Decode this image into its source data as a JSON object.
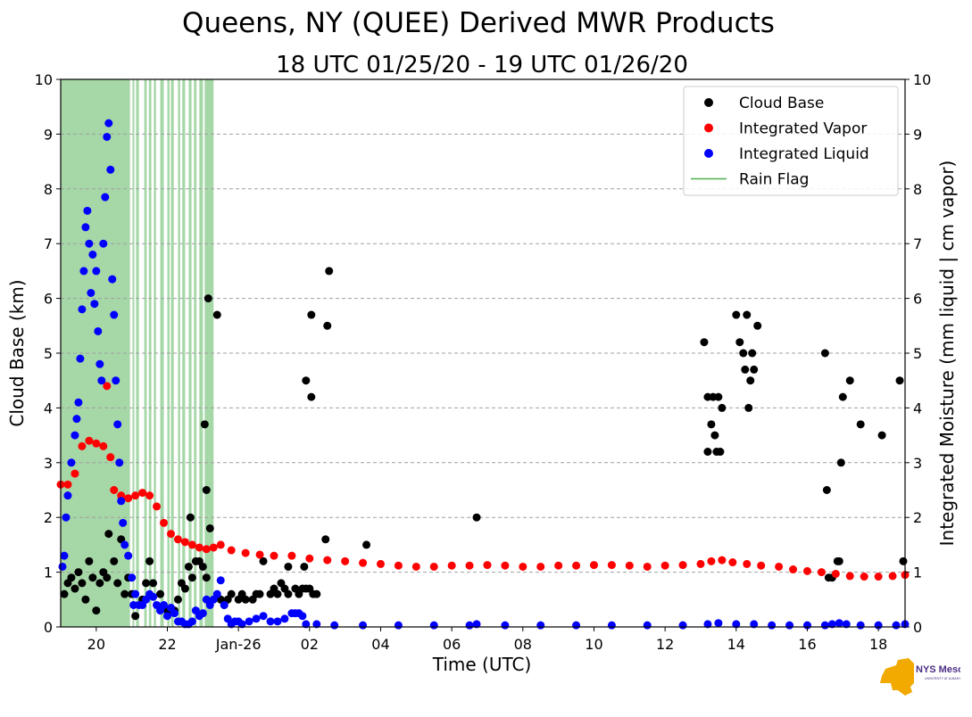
{
  "chart_data": {
    "type": "scatter",
    "title": "Queens, NY (QUEE) Derived MWR Products",
    "subtitle": "18 UTC 01/25/20 - 19 UTC 01/26/20",
    "xlabel": "Time (UTC)",
    "ylabel_left": "Cloud Base (km)",
    "ylabel_right": "Integrated Moisture (mm liquid | cm vapor)",
    "x_unit": "hours since 2020-01-25 00:00 UTC",
    "xlim": [
      19.0,
      42.75
    ],
    "ylim": [
      0,
      10
    ],
    "x_ticks": [
      {
        "x": 20,
        "label": "20"
      },
      {
        "x": 22,
        "label": "22"
      },
      {
        "x": 24,
        "label": "Jan-26"
      },
      {
        "x": 26,
        "label": "02"
      },
      {
        "x": 28,
        "label": "04"
      },
      {
        "x": 30,
        "label": "06"
      },
      {
        "x": 32,
        "label": "08"
      },
      {
        "x": 34,
        "label": "10"
      },
      {
        "x": 36,
        "label": "12"
      },
      {
        "x": 38,
        "label": "14"
      },
      {
        "x": 40,
        "label": "16"
      },
      {
        "x": 42,
        "label": "18"
      }
    ],
    "y_ticks": [
      0,
      1,
      2,
      3,
      4,
      5,
      6,
      7,
      8,
      9,
      10
    ],
    "grid": "horizontal dashed",
    "legend_position": "top-right",
    "legend": [
      {
        "label": "Cloud Base",
        "color": "#000000",
        "kind": "dot"
      },
      {
        "label": "Integrated Vapor",
        "color": "#ff0000",
        "kind": "dot"
      },
      {
        "label": "Integrated Liquid",
        "color": "#0000ff",
        "kind": "dot"
      },
      {
        "label": "Rain Flag",
        "color": "#4caf50",
        "kind": "line"
      }
    ],
    "rain_flag_intervals": [
      [
        19.0,
        20.95
      ],
      [
        21.02,
        21.07
      ],
      [
        21.12,
        21.2
      ],
      [
        21.35,
        21.42
      ],
      [
        21.48,
        21.55
      ],
      [
        21.62,
        21.68
      ],
      [
        21.8,
        21.9
      ],
      [
        22.0,
        22.06
      ],
      [
        22.1,
        22.18
      ],
      [
        22.3,
        22.36
      ],
      [
        22.42,
        22.5
      ],
      [
        22.6,
        22.68
      ],
      [
        22.75,
        22.82
      ],
      [
        22.9,
        23.0
      ],
      [
        23.05,
        23.3
      ]
    ],
    "series": [
      {
        "name": "Cloud Base",
        "color": "#000000",
        "points": [
          [
            19.1,
            0.6
          ],
          [
            19.2,
            0.8
          ],
          [
            19.3,
            0.9
          ],
          [
            19.4,
            0.7
          ],
          [
            19.5,
            1.0
          ],
          [
            19.6,
            0.8
          ],
          [
            19.7,
            0.5
          ],
          [
            19.8,
            1.2
          ],
          [
            19.9,
            0.9
          ],
          [
            20.0,
            0.3
          ],
          [
            20.1,
            0.8
          ],
          [
            20.2,
            1.0
          ],
          [
            20.3,
            0.9
          ],
          [
            20.35,
            1.7
          ],
          [
            20.5,
            1.2
          ],
          [
            20.6,
            0.8
          ],
          [
            20.7,
            1.6
          ],
          [
            20.8,
            0.6
          ],
          [
            20.9,
            0.9
          ],
          [
            21.0,
            0.6
          ],
          [
            21.1,
            0.2
          ],
          [
            21.3,
            0.5
          ],
          [
            21.4,
            0.8
          ],
          [
            21.5,
            1.2
          ],
          [
            21.6,
            0.8
          ],
          [
            21.8,
            0.6
          ],
          [
            22.0,
            0.3
          ],
          [
            22.2,
            0.3
          ],
          [
            22.3,
            0.5
          ],
          [
            22.4,
            0.8
          ],
          [
            22.5,
            0.7
          ],
          [
            22.6,
            1.1
          ],
          [
            22.7,
            0.9
          ],
          [
            22.8,
            1.2
          ],
          [
            22.9,
            1.2
          ],
          [
            23.0,
            1.1
          ],
          [
            23.1,
            0.9
          ],
          [
            22.65,
            2.0
          ],
          [
            23.05,
            3.7
          ],
          [
            23.1,
            2.5
          ],
          [
            23.15,
            6.0
          ],
          [
            23.2,
            1.8
          ],
          [
            23.4,
            5.7
          ],
          [
            23.5,
            0.5
          ],
          [
            23.6,
            0.4
          ],
          [
            23.7,
            0.5
          ],
          [
            23.8,
            0.6
          ],
          [
            24.0,
            0.5
          ],
          [
            24.1,
            0.6
          ],
          [
            24.2,
            0.5
          ],
          [
            24.4,
            0.5
          ],
          [
            24.5,
            0.6
          ],
          [
            24.6,
            0.6
          ],
          [
            24.7,
            1.2
          ],
          [
            24.9,
            0.6
          ],
          [
            25.0,
            0.7
          ],
          [
            25.1,
            0.6
          ],
          [
            25.2,
            0.8
          ],
          [
            25.3,
            0.7
          ],
          [
            25.4,
            0.6
          ],
          [
            25.6,
            0.7
          ],
          [
            25.7,
            0.6
          ],
          [
            25.8,
            0.7
          ],
          [
            25.9,
            0.7
          ],
          [
            26.0,
            0.7
          ],
          [
            26.1,
            0.6
          ],
          [
            26.2,
            0.6
          ],
          [
            25.4,
            1.1
          ],
          [
            25.85,
            1.1
          ],
          [
            25.9,
            4.5
          ],
          [
            26.05,
            4.2
          ],
          [
            26.05,
            5.7
          ],
          [
            26.45,
            1.6
          ],
          [
            26.5,
            5.5
          ],
          [
            26.55,
            6.5
          ],
          [
            27.6,
            1.5
          ],
          [
            30.7,
            2.0
          ],
          [
            37.1,
            5.2
          ],
          [
            37.2,
            4.2
          ],
          [
            37.2,
            3.2
          ],
          [
            37.3,
            3.7
          ],
          [
            37.35,
            4.2
          ],
          [
            37.4,
            3.5
          ],
          [
            37.45,
            3.2
          ],
          [
            37.5,
            4.2
          ],
          [
            37.55,
            3.2
          ],
          [
            37.6,
            4.0
          ],
          [
            38.0,
            5.7
          ],
          [
            38.1,
            5.2
          ],
          [
            38.2,
            5.0
          ],
          [
            38.25,
            4.7
          ],
          [
            38.3,
            5.7
          ],
          [
            38.35,
            4.0
          ],
          [
            38.4,
            4.5
          ],
          [
            38.45,
            5.0
          ],
          [
            38.5,
            4.7
          ],
          [
            38.6,
            5.5
          ],
          [
            40.5,
            5.0
          ],
          [
            40.55,
            2.5
          ],
          [
            40.6,
            0.9
          ],
          [
            40.7,
            0.9
          ],
          [
            40.85,
            1.2
          ],
          [
            40.9,
            1.2
          ],
          [
            40.95,
            3.0
          ],
          [
            41.0,
            4.2
          ],
          [
            41.2,
            4.5
          ],
          [
            41.5,
            3.7
          ],
          [
            42.1,
            3.5
          ],
          [
            42.6,
            4.5
          ],
          [
            42.7,
            1.2
          ]
        ]
      },
      {
        "name": "Integrated Vapor",
        "color": "#ff0000",
        "points": [
          [
            19.0,
            2.6
          ],
          [
            19.2,
            2.6
          ],
          [
            19.4,
            2.8
          ],
          [
            19.6,
            3.3
          ],
          [
            19.8,
            3.4
          ],
          [
            20.0,
            3.35
          ],
          [
            20.2,
            3.3
          ],
          [
            20.3,
            4.4
          ],
          [
            20.4,
            3.1
          ],
          [
            20.5,
            2.5
          ],
          [
            20.7,
            2.4
          ],
          [
            20.9,
            2.35
          ],
          [
            21.1,
            2.4
          ],
          [
            21.3,
            2.45
          ],
          [
            21.5,
            2.4
          ],
          [
            21.7,
            2.2
          ],
          [
            21.9,
            1.9
          ],
          [
            22.1,
            1.7
          ],
          [
            22.3,
            1.6
          ],
          [
            22.5,
            1.55
          ],
          [
            22.7,
            1.5
          ],
          [
            22.9,
            1.45
          ],
          [
            23.1,
            1.42
          ],
          [
            23.3,
            1.45
          ],
          [
            23.5,
            1.5
          ],
          [
            23.8,
            1.4
          ],
          [
            24.2,
            1.35
          ],
          [
            24.6,
            1.32
          ],
          [
            25.0,
            1.3
          ],
          [
            25.5,
            1.3
          ],
          [
            26.0,
            1.25
          ],
          [
            26.5,
            1.22
          ],
          [
            27.0,
            1.2
          ],
          [
            27.5,
            1.17
          ],
          [
            28.0,
            1.15
          ],
          [
            28.5,
            1.12
          ],
          [
            29.0,
            1.1
          ],
          [
            29.5,
            1.1
          ],
          [
            30.0,
            1.12
          ],
          [
            30.5,
            1.12
          ],
          [
            31.0,
            1.13
          ],
          [
            31.5,
            1.12
          ],
          [
            32.0,
            1.1
          ],
          [
            32.5,
            1.1
          ],
          [
            33.0,
            1.12
          ],
          [
            33.5,
            1.12
          ],
          [
            34.0,
            1.13
          ],
          [
            34.5,
            1.13
          ],
          [
            35.0,
            1.12
          ],
          [
            35.5,
            1.1
          ],
          [
            36.0,
            1.12
          ],
          [
            36.5,
            1.13
          ],
          [
            37.0,
            1.15
          ],
          [
            37.3,
            1.2
          ],
          [
            37.6,
            1.22
          ],
          [
            37.9,
            1.18
          ],
          [
            38.3,
            1.15
          ],
          [
            38.7,
            1.12
          ],
          [
            39.2,
            1.1
          ],
          [
            39.6,
            1.05
          ],
          [
            40.0,
            1.02
          ],
          [
            40.4,
            1.0
          ],
          [
            40.8,
            0.97
          ],
          [
            41.2,
            0.93
          ],
          [
            41.6,
            0.92
          ],
          [
            42.0,
            0.92
          ],
          [
            42.4,
            0.93
          ],
          [
            42.75,
            0.95
          ]
        ]
      },
      {
        "name": "Integrated Liquid",
        "color": "#0000ff",
        "points": [
          [
            19.05,
            1.1
          ],
          [
            19.1,
            1.3
          ],
          [
            19.15,
            2.0
          ],
          [
            19.2,
            2.4
          ],
          [
            19.3,
            3.0
          ],
          [
            19.4,
            3.5
          ],
          [
            19.45,
            3.8
          ],
          [
            19.5,
            4.1
          ],
          [
            19.55,
            4.9
          ],
          [
            19.6,
            5.8
          ],
          [
            19.65,
            6.5
          ],
          [
            19.7,
            7.3
          ],
          [
            19.75,
            7.6
          ],
          [
            19.8,
            7.0
          ],
          [
            19.85,
            6.1
          ],
          [
            19.9,
            6.8
          ],
          [
            19.95,
            5.9
          ],
          [
            20.0,
            6.5
          ],
          [
            20.05,
            5.4
          ],
          [
            20.1,
            4.8
          ],
          [
            20.15,
            4.5
          ],
          [
            20.2,
            7.0
          ],
          [
            20.25,
            7.85
          ],
          [
            20.3,
            8.95
          ],
          [
            20.35,
            9.2
          ],
          [
            20.4,
            8.35
          ],
          [
            20.45,
            6.35
          ],
          [
            20.5,
            5.7
          ],
          [
            20.55,
            4.5
          ],
          [
            20.6,
            3.7
          ],
          [
            20.65,
            3.0
          ],
          [
            20.7,
            2.3
          ],
          [
            20.75,
            1.9
          ],
          [
            20.8,
            1.5
          ],
          [
            20.9,
            1.3
          ],
          [
            21.0,
            0.9
          ],
          [
            21.05,
            0.4
          ],
          [
            21.1,
            0.6
          ],
          [
            21.2,
            0.4
          ],
          [
            21.3,
            0.4
          ],
          [
            21.4,
            0.5
          ],
          [
            21.5,
            0.6
          ],
          [
            21.6,
            0.55
          ],
          [
            21.7,
            0.4
          ],
          [
            21.8,
            0.3
          ],
          [
            21.9,
            0.4
          ],
          [
            22.0,
            0.2
          ],
          [
            22.1,
            0.35
          ],
          [
            22.2,
            0.25
          ],
          [
            22.3,
            0.1
          ],
          [
            22.4,
            0.1
          ],
          [
            22.5,
            0.05
          ],
          [
            22.6,
            0.05
          ],
          [
            22.7,
            0.1
          ],
          [
            22.8,
            0.3
          ],
          [
            22.9,
            0.2
          ],
          [
            23.0,
            0.25
          ],
          [
            23.1,
            0.5
          ],
          [
            23.2,
            0.4
          ],
          [
            23.3,
            0.5
          ],
          [
            23.4,
            0.6
          ],
          [
            23.5,
            0.85
          ],
          [
            23.6,
            0.4
          ],
          [
            23.7,
            0.15
          ],
          [
            23.8,
            0.05
          ],
          [
            23.9,
            0.1
          ],
          [
            24.0,
            0.1
          ],
          [
            24.1,
            0.05
          ],
          [
            24.3,
            0.1
          ],
          [
            24.5,
            0.15
          ],
          [
            24.7,
            0.2
          ],
          [
            24.9,
            0.1
          ],
          [
            25.1,
            0.1
          ],
          [
            25.3,
            0.15
          ],
          [
            25.5,
            0.25
          ],
          [
            25.6,
            0.25
          ],
          [
            25.7,
            0.25
          ],
          [
            25.8,
            0.2
          ],
          [
            25.9,
            0.05
          ],
          [
            26.2,
            0.05
          ],
          [
            26.7,
            0.03
          ],
          [
            27.5,
            0.03
          ],
          [
            28.5,
            0.03
          ],
          [
            29.5,
            0.03
          ],
          [
            30.5,
            0.03
          ],
          [
            30.7,
            0.05
          ],
          [
            31.5,
            0.03
          ],
          [
            32.5,
            0.03
          ],
          [
            33.5,
            0.03
          ],
          [
            34.5,
            0.03
          ],
          [
            35.5,
            0.03
          ],
          [
            36.5,
            0.03
          ],
          [
            37.2,
            0.05
          ],
          [
            37.5,
            0.07
          ],
          [
            38.0,
            0.05
          ],
          [
            38.5,
            0.05
          ],
          [
            39.0,
            0.03
          ],
          [
            39.5,
            0.03
          ],
          [
            40.0,
            0.03
          ],
          [
            40.5,
            0.03
          ],
          [
            40.7,
            0.05
          ],
          [
            40.9,
            0.07
          ],
          [
            41.1,
            0.05
          ],
          [
            41.5,
            0.03
          ],
          [
            42.0,
            0.03
          ],
          [
            42.5,
            0.03
          ],
          [
            42.75,
            0.05
          ]
        ]
      }
    ]
  },
  "logo": {
    "text": "NYS Mesonet",
    "subtext": "UNIVERSITY AT ALBANY",
    "color": "#4b2e83",
    "shape_color": "#f2a900"
  }
}
